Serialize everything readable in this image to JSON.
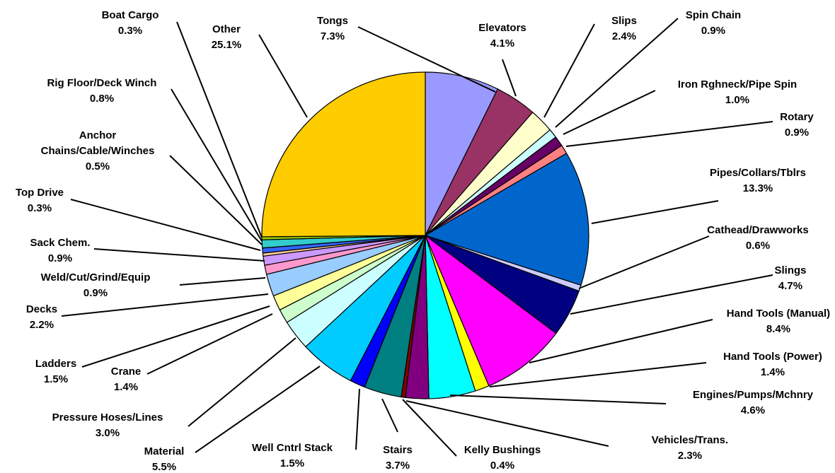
{
  "chart_data": {
    "type": "pie",
    "title": "",
    "start_angle": "12 o'clock",
    "direction": "clockwise",
    "legend": "none",
    "slice_border_color": "#000000",
    "slices": [
      {
        "name": "Tongs",
        "value": 7.3,
        "value_label": "7.3%",
        "color": "#9999FF"
      },
      {
        "name": "Elevators",
        "value": 4.1,
        "value_label": "4.1%",
        "color": "#993366"
      },
      {
        "name": "Slips",
        "value": 2.4,
        "value_label": "2.4%",
        "color": "#FFFFCC"
      },
      {
        "name": "Spin Chain",
        "value": 0.9,
        "value_label": "0.9%",
        "color": "#CCFFFF"
      },
      {
        "name": "Iron Rghneck/Pipe Spin",
        "value": 1.0,
        "value_label": "1.0%",
        "color": "#660066"
      },
      {
        "name": "Rotary",
        "value": 0.9,
        "value_label": "0.9%",
        "color": "#FF8080"
      },
      {
        "name": "Pipes/Collars/Tblrs",
        "value": 13.3,
        "value_label": "13.3%",
        "color": "#0066CC"
      },
      {
        "name": "Cathead/Drawworks",
        "value": 0.6,
        "value_label": "0.6%",
        "color": "#CCCCFF"
      },
      {
        "name": "Slings",
        "value": 4.7,
        "value_label": "4.7%",
        "color": "#000080"
      },
      {
        "name": "Hand Tools (Manual)",
        "value": 8.4,
        "value_label": "8.4%",
        "color": "#FF00FF"
      },
      {
        "name": "Hand Tools (Power)",
        "value": 1.4,
        "value_label": "1.4%",
        "color": "#FFFF00"
      },
      {
        "name": "Engines/Pumps/Mchnry",
        "value": 4.6,
        "value_label": "4.6%",
        "color": "#00FFFF"
      },
      {
        "name": "Vehicles/Trans.",
        "value": 2.3,
        "value_label": "2.3%",
        "color": "#800080"
      },
      {
        "name": "Kelly Bushings",
        "value": 0.4,
        "value_label": "0.4%",
        "color": "#800000"
      },
      {
        "name": "Stairs",
        "value": 3.7,
        "value_label": "3.7%",
        "color": "#008080"
      },
      {
        "name": "Well Cntrl Stack",
        "value": 1.5,
        "value_label": "1.5%",
        "color": "#0000FF"
      },
      {
        "name": "Material",
        "value": 5.5,
        "value_label": "5.5%",
        "color": "#00CCFF"
      },
      {
        "name": "Pressure Hoses/Lines",
        "value": 3.0,
        "value_label": "3.0%",
        "color": "#CCFFFF"
      },
      {
        "name": "Crane",
        "value": 1.4,
        "value_label": "1.4%",
        "color": "#CCFFCC"
      },
      {
        "name": "Ladders",
        "value": 1.5,
        "value_label": "1.5%",
        "color": "#FFFF99"
      },
      {
        "name": "Decks",
        "value": 2.2,
        "value_label": "2.2%",
        "color": "#99CCFF"
      },
      {
        "name": "Weld/Cut/Grind/Equip",
        "value": 0.9,
        "value_label": "0.9%",
        "color": "#FF99CC"
      },
      {
        "name": "Sack Chem.",
        "value": 0.9,
        "value_label": "0.9%",
        "color": "#CC99FF"
      },
      {
        "name": "Top Drive",
        "value": 0.3,
        "value_label": "0.3%",
        "color": "#FFCC99"
      },
      {
        "name": "Anchor Chains/Cable/Winches",
        "name_lines": [
          "Anchor",
          "Chains/Cable/Winches"
        ],
        "value": 0.5,
        "value_label": "0.5%",
        "color": "#3366FF"
      },
      {
        "name": "Rig Floor/Deck Winch",
        "value": 0.8,
        "value_label": "0.8%",
        "color": "#33CCCC"
      },
      {
        "name": "Boat Cargo",
        "value": 0.3,
        "value_label": "0.3%",
        "color": "#99CC00"
      },
      {
        "name": "Other",
        "value": 25.1,
        "value_label": "25.1%",
        "color": "#FFCC00"
      }
    ]
  }
}
